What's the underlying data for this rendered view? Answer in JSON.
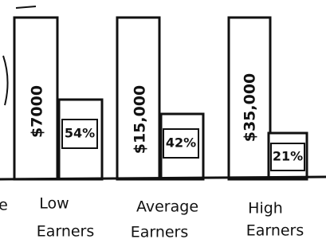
{
  "cropped_label": "e",
  "groups": [
    {
      "amount": "$7000",
      "share": "54%",
      "label_line1": "Low",
      "label_line2": "Earners"
    },
    {
      "amount": "$15,000",
      "share": "42%",
      "label_line1": "Average",
      "label_line2": "Earners"
    },
    {
      "amount": "$35,000",
      "share": "21%",
      "label_line1": "High",
      "label_line2": "Earners"
    }
  ]
}
